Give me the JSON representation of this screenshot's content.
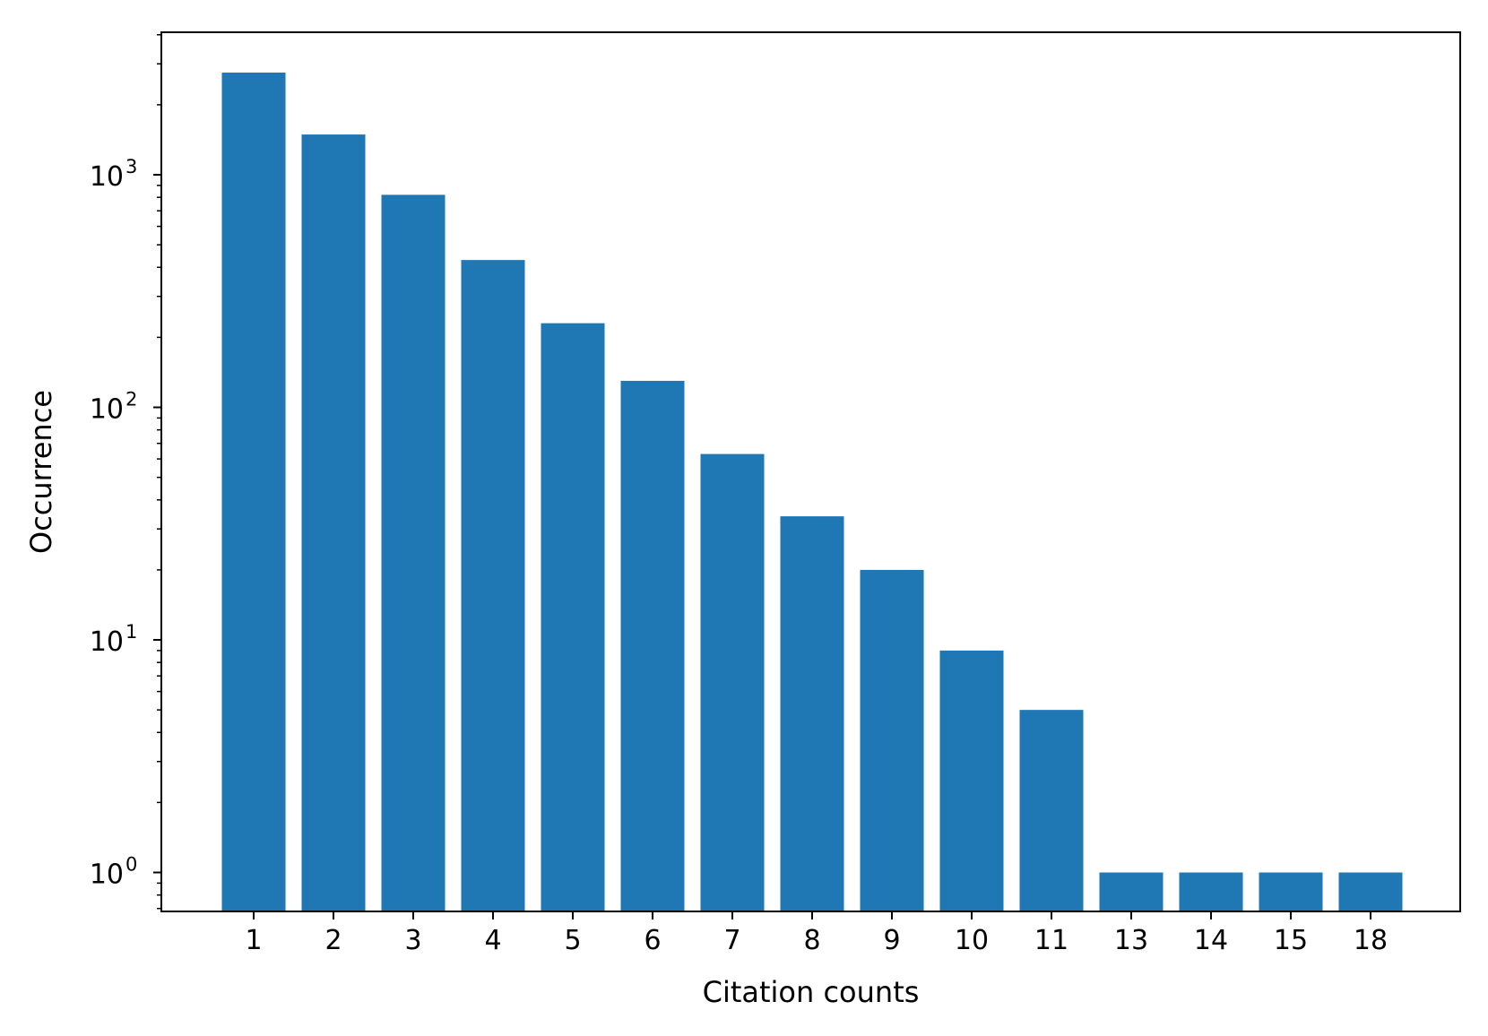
{
  "chart_data": {
    "type": "bar",
    "categories": [
      "1",
      "2",
      "3",
      "4",
      "5",
      "6",
      "7",
      "8",
      "9",
      "10",
      "11",
      "13",
      "14",
      "15",
      "18"
    ],
    "values": [
      2750,
      1490,
      820,
      430,
      230,
      130,
      63,
      34,
      20,
      9,
      5,
      1,
      1,
      1,
      1
    ],
    "xlabel": "Citation counts",
    "ylabel": "Occurrence",
    "yscale": "log",
    "ylim": [
      0.68,
      4100
    ],
    "yticks": [
      {
        "value": 1,
        "base": "10",
        "exp": "0"
      },
      {
        "value": 10,
        "base": "10",
        "exp": "1"
      },
      {
        "value": 100,
        "base": "10",
        "exp": "2"
      },
      {
        "value": 1000,
        "base": "10",
        "exp": "3"
      }
    ],
    "grid": false,
    "legend": "none",
    "colors": {
      "bar": "#1f77b4",
      "axis": "#000000",
      "background": "#ffffff"
    }
  }
}
